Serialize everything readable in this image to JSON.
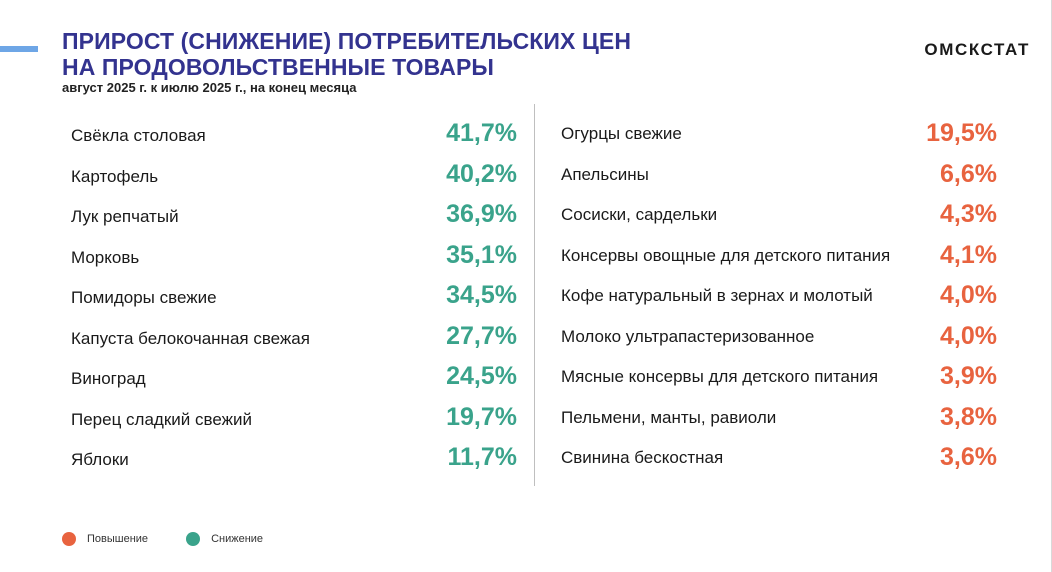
{
  "header": {
    "title_line1": "ПРИРОСТ (СНИЖЕНИЕ) ПОТРЕБИТЕЛЬСКИХ ЦЕН",
    "title_line2": "НА ПРОДОВОЛЬСТВЕННЫЕ ТОВАРЫ",
    "subtitle": "август 2025 г. к июлю 2025 г., на конец месяца",
    "logo": "ОМСКСТАТ"
  },
  "colors": {
    "title": "#33338f",
    "increase": "#e8633f",
    "decrease": "#3aa38b",
    "accent_bar": "#6ea6e6"
  },
  "left_list": [
    {
      "name": "Свёкла столовая",
      "value": "41,7%"
    },
    {
      "name": "Картофель",
      "value": "40,2%"
    },
    {
      "name": "Лук репчатый",
      "value": "36,9%"
    },
    {
      "name": "Морковь",
      "value": "35,1%"
    },
    {
      "name": "Помидоры свежие",
      "value": "34,5%"
    },
    {
      "name": "Капуста белокочанная свежая",
      "value": "27,7%"
    },
    {
      "name": "Виноград",
      "value": "24,5%"
    },
    {
      "name": "Перец сладкий свежий",
      "value": "19,7%"
    },
    {
      "name": "Яблоки",
      "value": "11,7%"
    }
  ],
  "right_list": [
    {
      "name": "Огурцы свежие",
      "value": "19,5%"
    },
    {
      "name": "Апельсины",
      "value": "6,6%"
    },
    {
      "name": "Сосиски, сардельки",
      "value": "4,3%"
    },
    {
      "name": "Консервы овощные для детского питания",
      "value": "4,1%"
    },
    {
      "name": "Кофе натуральный в зернах и молотый",
      "value": "4,0%"
    },
    {
      "name": "Молоко ультрапастеризованное",
      "value": "4,0%"
    },
    {
      "name": "Мясные консервы для детского питания",
      "value": "3,9%"
    },
    {
      "name": "Пельмени, манты, равиоли",
      "value": "3,8%"
    },
    {
      "name": "Свинина бескостная",
      "value": "3,6%"
    }
  ],
  "legend": {
    "increase_label": "Повышение",
    "decrease_label": "Снижение"
  }
}
